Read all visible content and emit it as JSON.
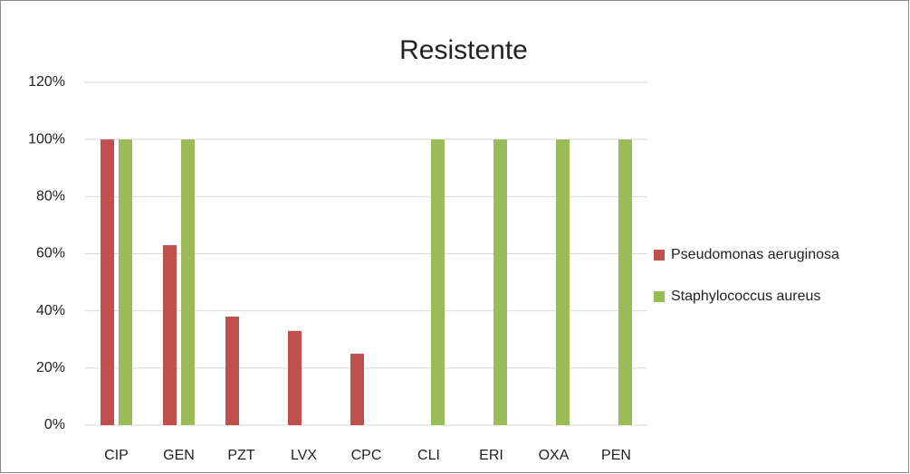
{
  "chart_data": {
    "type": "bar",
    "title": "Resistente",
    "categories": [
      "CIP",
      "GEN",
      "PZT",
      "LVX",
      "CPC",
      "CLI",
      "ERI",
      "OXA",
      "PEN"
    ],
    "series": [
      {
        "name": "Pseudomonas aeruginosa",
        "color": "#c0504d",
        "values": [
          100,
          63,
          38,
          33,
          25,
          0,
          0,
          0,
          0
        ]
      },
      {
        "name": "Staphylococcus aureus",
        "color": "#9bbb59",
        "values": [
          100,
          100,
          0,
          0,
          0,
          100,
          100,
          100,
          100
        ]
      }
    ],
    "ylim": [
      0,
      120
    ],
    "yticks": [
      {
        "value": 0,
        "label": "0%"
      },
      {
        "value": 20,
        "label": "20%"
      },
      {
        "value": 40,
        "label": "40%"
      },
      {
        "value": 60,
        "label": "60%"
      },
      {
        "value": 80,
        "label": "80%"
      },
      {
        "value": 100,
        "label": "100%"
      },
      {
        "value": 120,
        "label": "120%"
      }
    ],
    "grid": true,
    "legend": "right"
  }
}
